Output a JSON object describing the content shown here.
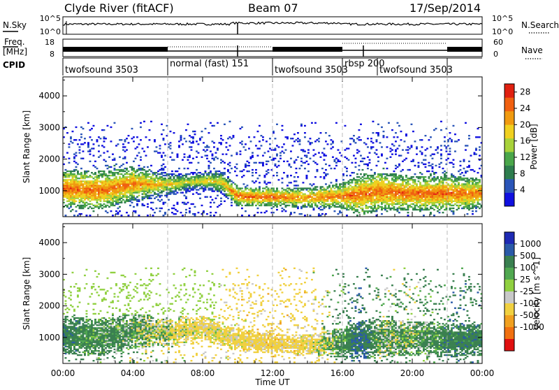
{
  "header": {
    "station": "Clyde River (fitACF)",
    "beam": "Beam 07",
    "date": "17/Sep/2014"
  },
  "strip": {
    "nsky_label": "N.Sky",
    "nsearch_label": "N.Search",
    "nsky_ticks": [
      "10^5",
      "10^0"
    ],
    "nsearch_ticks": [
      "10^5",
      "10^0"
    ],
    "freq_label": "Freq.",
    "freq_unit": "[MHz]",
    "freq_ticks": [
      "18",
      "8"
    ],
    "nave_label": "Nave",
    "nave_ticks": [
      "60",
      "0"
    ],
    "cpid_label": "CPID",
    "cpid_segments": [
      {
        "label": "twofsound 3503",
        "start": 0,
        "end": 6
      },
      {
        "label": "normal (fast) 151",
        "start": 6,
        "end": 12
      },
      {
        "label": "twofsound 3503",
        "start": 12,
        "end": 16
      },
      {
        "label": "rbsp 200",
        "start": 16,
        "end": 18
      },
      {
        "label": "twofsound 3503",
        "start": 18,
        "end": 22
      }
    ]
  },
  "colors": {
    "power": [
      "#1010e0",
      "#2a55b8",
      "#2e7d4e",
      "#4aa64a",
      "#a8d23a",
      "#f0d020",
      "#f09a10",
      "#f06010",
      "#e02010"
    ],
    "velocity": [
      "#1e2ab4",
      "#2a5aa8",
      "#3a8050",
      "#50a850",
      "#90d040",
      "#c8c8c8",
      "#f0d040",
      "#f0a020",
      "#f07010",
      "#e01010"
    ]
  },
  "chart_data": [
    {
      "type": "heatmap",
      "title": "",
      "xlabel": "Time UT",
      "ylabel": "Slant Range [km]",
      "xlim": [
        0,
        24
      ],
      "ylim": [
        180,
        4600
      ],
      "x_ticks": [
        "00:00",
        "04:00",
        "08:00",
        "12:00",
        "16:00",
        "20:00",
        "00:00"
      ],
      "y_ticks": [
        1000,
        2000,
        3000,
        4000
      ],
      "colorbar": {
        "label": "Power [dB]",
        "ticks": [
          4,
          8,
          12,
          16,
          20,
          24,
          28
        ],
        "range": [
          0,
          30
        ]
      },
      "backscatter_profile": {
        "hours": [
          0,
          2,
          4,
          6,
          7,
          8,
          9,
          10,
          12,
          14,
          16,
          17,
          18,
          20,
          22,
          24
        ],
        "main_band_center_km": [
          1050,
          980,
          1200,
          1180,
          1250,
          1300,
          1250,
          800,
          780,
          760,
          820,
          850,
          950,
          900,
          900,
          900
        ],
        "main_band_width_km": [
          500,
          500,
          450,
          300,
          250,
          250,
          300,
          250,
          250,
          250,
          350,
          550,
          500,
          450,
          450,
          400
        ],
        "peak_power_db": [
          28,
          28,
          27,
          22,
          20,
          22,
          22,
          28,
          28,
          26,
          27,
          28,
          28,
          28,
          28,
          27
        ]
      }
    },
    {
      "type": "heatmap",
      "title": "",
      "xlabel": "Time UT",
      "ylabel": "Slant Range [km]",
      "xlim": [
        0,
        24
      ],
      "ylim": [
        180,
        4600
      ],
      "x_ticks": [
        "00:00",
        "04:00",
        "08:00",
        "12:00",
        "16:00",
        "20:00",
        "00:00"
      ],
      "y_ticks": [
        1000,
        2000,
        3000,
        4000
      ],
      "colorbar": {
        "label": "Velocity [m s^-1]",
        "ticks": [
          1000,
          500,
          100,
          25,
          -25,
          -100,
          -500,
          -1000
        ]
      },
      "backscatter_profile": {
        "hours": [
          0,
          2,
          4,
          6,
          8,
          10,
          12,
          14,
          16,
          17,
          18,
          20,
          22,
          24
        ],
        "main_band_center_km": [
          1050,
          980,
          1200,
          1150,
          1300,
          900,
          780,
          760,
          820,
          900,
          950,
          950,
          900,
          900
        ],
        "main_band_width_km": [
          500,
          500,
          450,
          350,
          300,
          300,
          250,
          250,
          400,
          500,
          500,
          450,
          450,
          400
        ],
        "typical_velocity_ms": [
          300,
          200,
          100,
          -100,
          -200,
          -250,
          -300,
          -250,
          200,
          500,
          100,
          100,
          300,
          300
        ]
      }
    }
  ]
}
